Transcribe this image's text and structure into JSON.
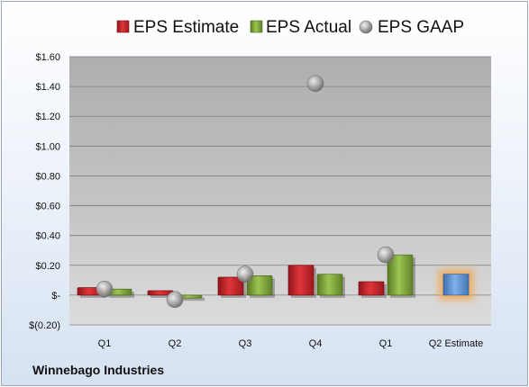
{
  "company_label": "Winnebago Industries",
  "colors": {
    "estimate": "#c8242a",
    "actual": "#7ea13b",
    "gaap": "#a8a8a8",
    "q2_estimate": "#5b8fd0",
    "highlight_glow": "#f5a54a"
  },
  "chart_data": {
    "type": "bar",
    "categories": [
      "Q1",
      "Q2",
      "Q3",
      "Q4",
      "Q1",
      "Q2 Estimate"
    ],
    "series": [
      {
        "name": "EPS Estimate",
        "values": [
          0.05,
          0.03,
          0.12,
          0.2,
          0.09,
          0.14
        ]
      },
      {
        "name": "EPS Actual",
        "values": [
          0.04,
          -0.02,
          0.13,
          0.14,
          0.27,
          null
        ]
      },
      {
        "name": "EPS GAAP",
        "values": [
          0.04,
          -0.03,
          0.14,
          1.42,
          0.27,
          null
        ]
      }
    ],
    "series_styles": [
      "bar",
      "bar",
      "marker"
    ],
    "ylim": [
      -0.2,
      1.6
    ],
    "yticks": [
      1.6,
      1.4,
      1.2,
      1.0,
      0.8,
      0.6,
      0.4,
      0.2,
      0,
      -0.2
    ],
    "ytick_labels": [
      "$1.60",
      "$1.40",
      "$1.20",
      "$1.00",
      "$0.80",
      "$0.60",
      "$0.40",
      "$0.20",
      "$-",
      "$(0.20)"
    ],
    "grid": true,
    "legend_position": "top"
  }
}
